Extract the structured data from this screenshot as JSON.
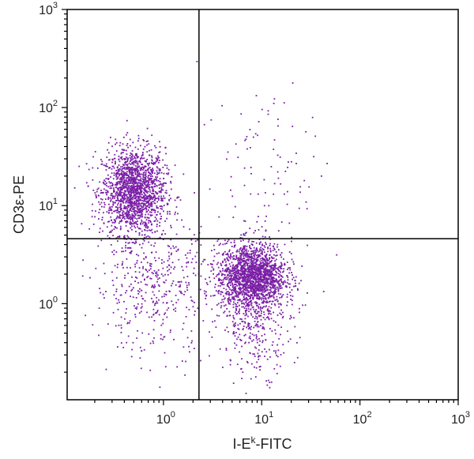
{
  "chart_data": {
    "type": "scatter",
    "title": "",
    "xlabel": {
      "prefix": "I-E",
      "sup": "k",
      "suffix": "-FITC"
    },
    "ylabel": "CD3ε-PE",
    "xscale": "log",
    "yscale": "log",
    "xlim_log10": [
      -0.98,
      3.0
    ],
    "ylim_log10": [
      -0.98,
      3.0
    ],
    "x_ticks": [
      {
        "base": "10",
        "exp": "0",
        "value": 1
      },
      {
        "base": "10",
        "exp": "1",
        "value": 10
      },
      {
        "base": "10",
        "exp": "2",
        "value": 100
      },
      {
        "base": "10",
        "exp": "3",
        "value": 1000
      }
    ],
    "y_ticks": [
      {
        "base": "10",
        "exp": "0",
        "value": 1
      },
      {
        "base": "10",
        "exp": "1",
        "value": 10
      },
      {
        "base": "10",
        "exp": "2",
        "value": 100
      },
      {
        "base": "10",
        "exp": "3",
        "value": 1000
      }
    ],
    "gate_lines": {
      "x": 2.3,
      "y": 4.6
    },
    "point_color": "#7a1fa6",
    "populations": [
      {
        "label": "CD3+ I-Ek-",
        "center": [
          0.5,
          14
        ],
        "spread_log10": [
          0.16,
          0.22
        ],
        "count": 1700
      },
      {
        "label": "CD3- I-Ek+",
        "center": [
          8,
          1.9
        ],
        "spread_log10": [
          0.17,
          0.17
        ],
        "count": 1800
      },
      {
        "label": "CD3- I-Ek+ tail",
        "center": [
          9,
          0.7
        ],
        "spread_log10": [
          0.18,
          0.28
        ],
        "count": 350
      },
      {
        "label": "double negative",
        "center": [
          0.8,
          1.5
        ],
        "spread_log10": [
          0.3,
          0.35
        ],
        "count": 450
      },
      {
        "label": "double positive",
        "center": [
          12,
          25
        ],
        "spread_log10": [
          0.35,
          0.5
        ],
        "count": 100
      }
    ]
  }
}
